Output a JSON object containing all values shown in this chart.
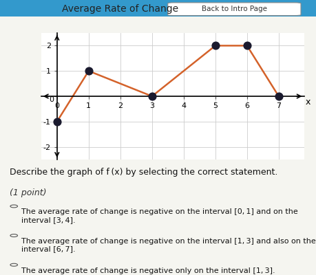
{
  "title": "Average Rate of Change",
  "back_link": "Back to Intro Page",
  "x_points": [
    0,
    1,
    3,
    5,
    6,
    7
  ],
  "y_points": [
    -1,
    1,
    0,
    2,
    2,
    0
  ],
  "line_color": "#d4622a",
  "dot_color": "#1a1a2e",
  "dot_size": 60,
  "xlim": [
    -0.5,
    7.8
  ],
  "ylim": [
    -2.5,
    2.5
  ],
  "xticks": [
    0,
    1,
    2,
    3,
    4,
    5,
    6,
    7
  ],
  "yticks": [
    -2,
    -1,
    0,
    1,
    2
  ],
  "xlabel": "x",
  "bg_color": "#f5f5f0",
  "graph_bg": "#ffffff",
  "question_text": "Describe the graph of f (x) by selecting the correct statement.",
  "point_label": "(1 point)",
  "choices": [
    "The average rate of change is negative on the interval [0, 1] and on the interval [3, 4].",
    "The average rate of change is negative on the interval [1, 3] and also on the interval [6, 7].",
    "The average rate of change is negative only on the interval [1, 3]."
  ],
  "header_bar_color": "#3399cc",
  "header_text_color": "#333333",
  "font_size_title": 10,
  "font_size_question": 9,
  "font_size_choices": 8
}
